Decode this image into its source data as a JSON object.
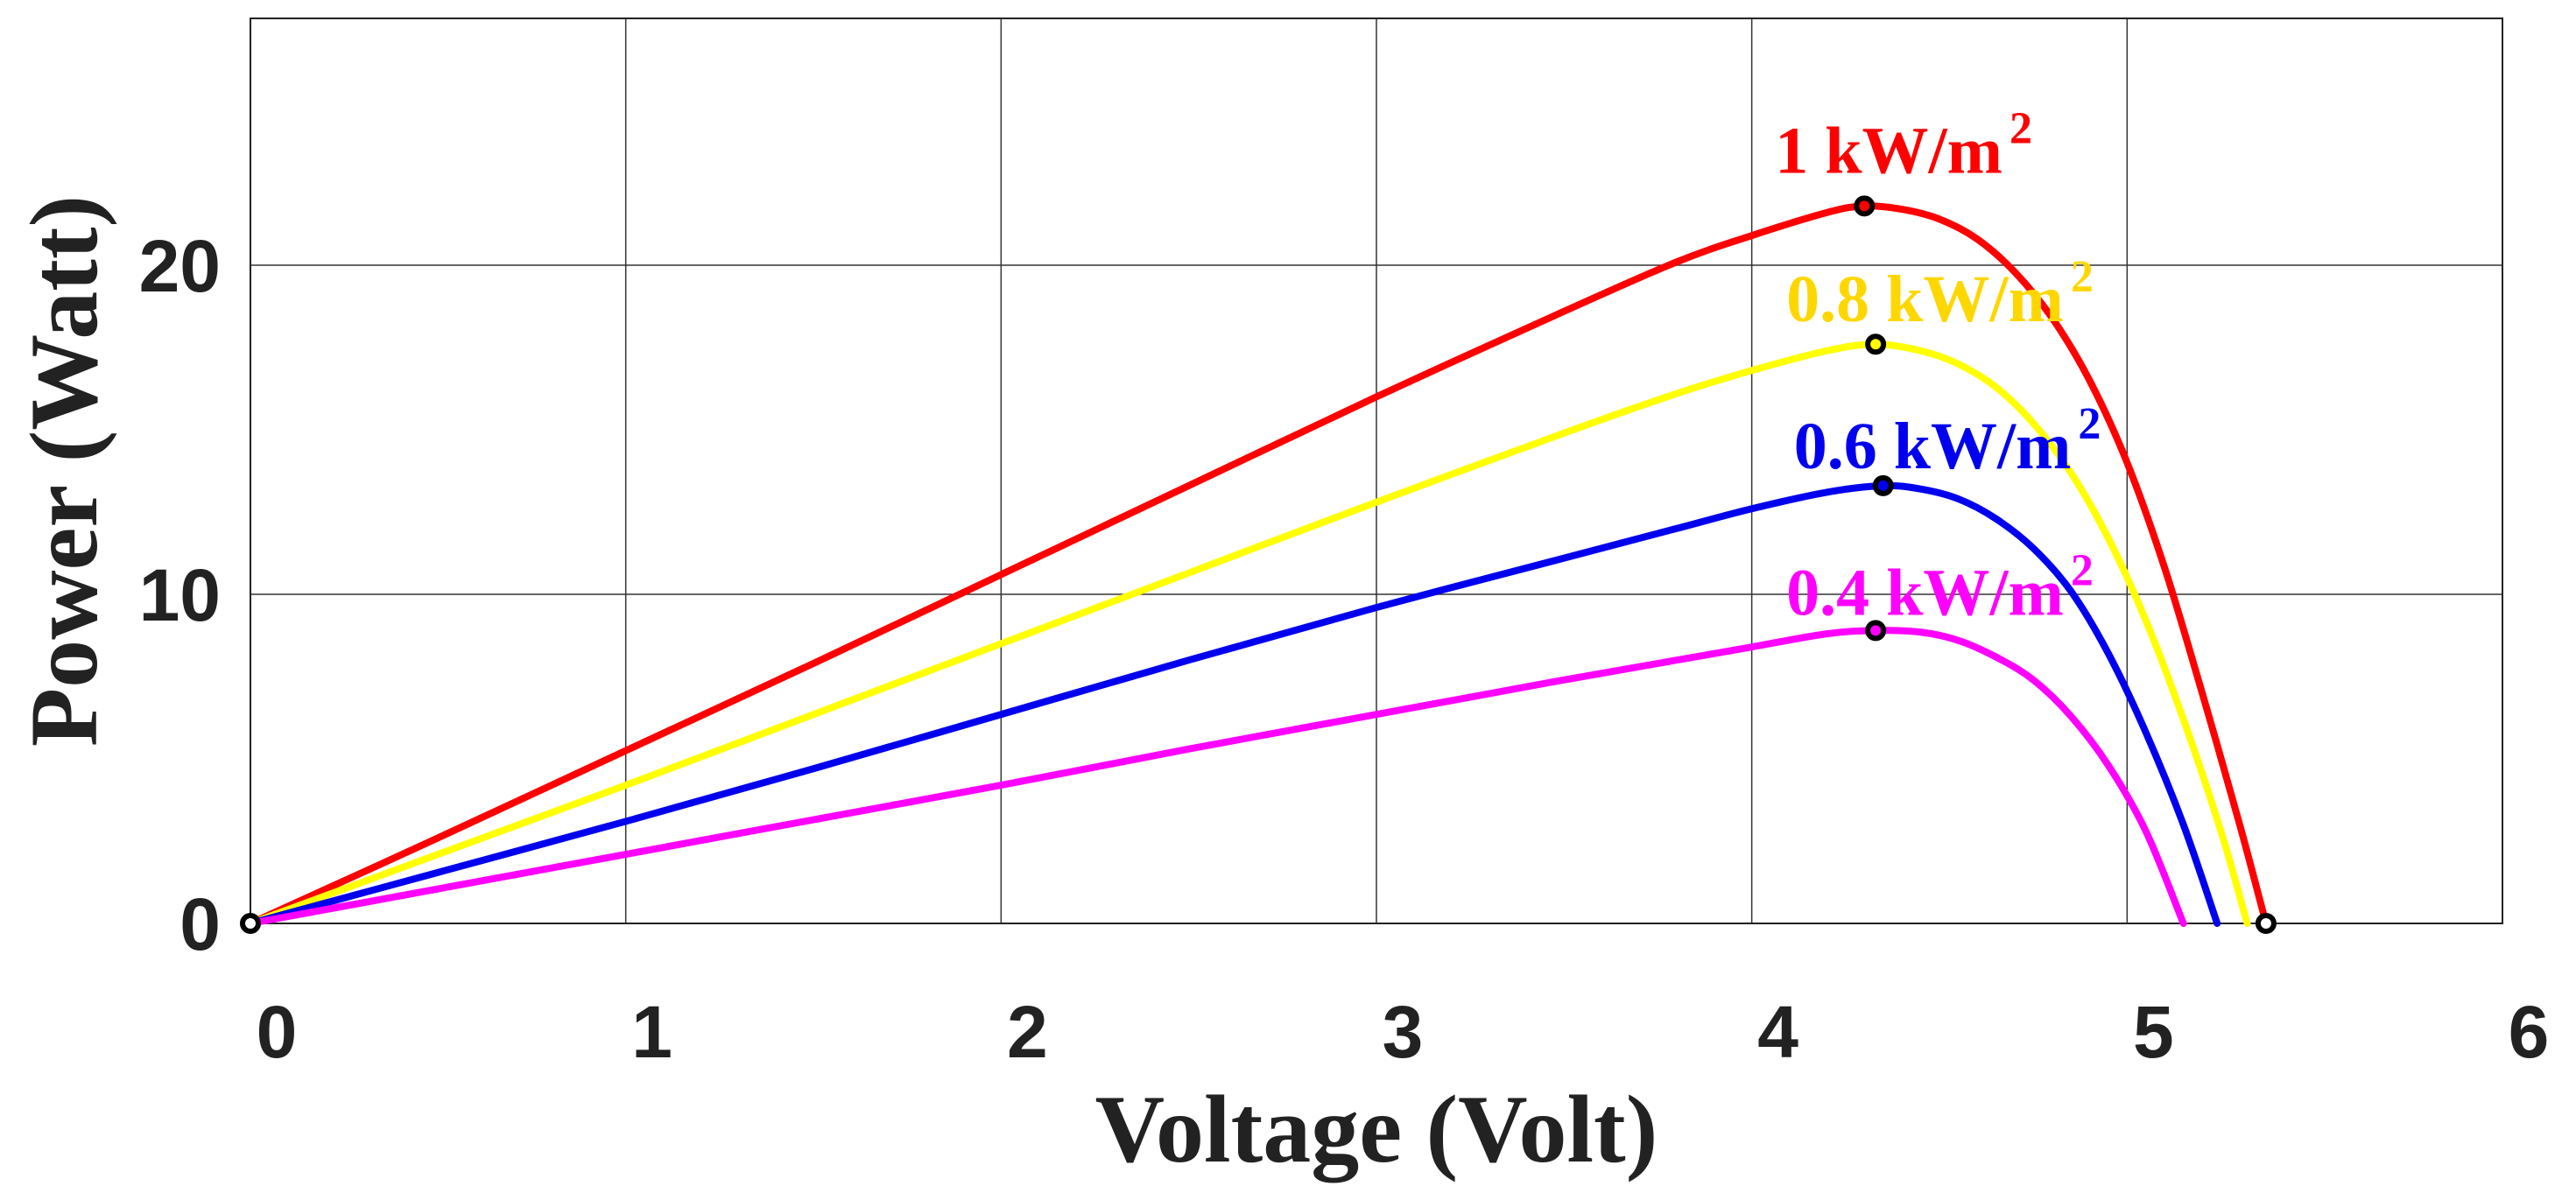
{
  "chart_data": {
    "type": "line",
    "title": "",
    "xlabel": "Voltage (Volt)",
    "ylabel": "Power (Watt)",
    "xlim": [
      0,
      6
    ],
    "ylim": [
      0,
      27.5
    ],
    "grid": true,
    "x_ticks": [
      0,
      1,
      2,
      3,
      4,
      5,
      6
    ],
    "x_tick_labels": [
      "0",
      "1",
      "2",
      "3",
      "4",
      "5",
      "6"
    ],
    "y_ticks": [
      0,
      10,
      20
    ],
    "y_tick_labels": [
      "0",
      "10",
      "20"
    ],
    "series": [
      {
        "name": "1 kW/m²",
        "label_main": "1 kW/m",
        "label_sup": "2",
        "color": "#ff0000",
        "voc": 5.37,
        "mpp": {
          "v": 4.3,
          "p": 21.8
        },
        "points": [
          [
            0,
            0
          ],
          [
            0.5,
            2.6
          ],
          [
            1,
            5.25
          ],
          [
            1.5,
            7.9
          ],
          [
            2,
            10.6
          ],
          [
            2.5,
            13.3
          ],
          [
            3,
            16.0
          ],
          [
            3.5,
            18.6
          ],
          [
            3.8,
            20.1
          ],
          [
            4.0,
            20.9
          ],
          [
            4.2,
            21.6
          ],
          [
            4.3,
            21.8
          ],
          [
            4.4,
            21.7
          ],
          [
            4.5,
            21.4
          ],
          [
            4.6,
            20.8
          ],
          [
            4.7,
            19.8
          ],
          [
            4.8,
            18.4
          ],
          [
            4.9,
            16.5
          ],
          [
            5.0,
            14.0
          ],
          [
            5.1,
            10.8
          ],
          [
            5.2,
            7.0
          ],
          [
            5.3,
            3.0
          ],
          [
            5.37,
            0
          ]
        ]
      },
      {
        "name": "0.8 kW/m²",
        "label_main": "0.8 kW/m",
        "label_sup": "2",
        "color": "#ffff00",
        "label_color": "#ffd700",
        "voc": 5.32,
        "mpp": {
          "v": 4.33,
          "p": 17.6
        },
        "points": [
          [
            0,
            0
          ],
          [
            0.5,
            2.1
          ],
          [
            1,
            4.2
          ],
          [
            1.5,
            6.35
          ],
          [
            2,
            8.5
          ],
          [
            2.5,
            10.65
          ],
          [
            3,
            12.8
          ],
          [
            3.5,
            14.9
          ],
          [
            3.8,
            16.1
          ],
          [
            4.0,
            16.8
          ],
          [
            4.2,
            17.4
          ],
          [
            4.33,
            17.6
          ],
          [
            4.45,
            17.4
          ],
          [
            4.55,
            17.0
          ],
          [
            4.65,
            16.3
          ],
          [
            4.75,
            15.2
          ],
          [
            4.85,
            13.7
          ],
          [
            4.95,
            11.7
          ],
          [
            5.05,
            9.2
          ],
          [
            5.15,
            6.2
          ],
          [
            5.25,
            2.8
          ],
          [
            5.32,
            0
          ]
        ]
      },
      {
        "name": "0.6 kW/m²",
        "label_main": "0.6 kW/m",
        "label_sup": "2",
        "color": "#0000ee",
        "voc": 5.24,
        "mpp": {
          "v": 4.35,
          "p": 13.3
        },
        "points": [
          [
            0,
            0
          ],
          [
            0.5,
            1.55
          ],
          [
            1,
            3.1
          ],
          [
            1.5,
            4.7
          ],
          [
            2,
            6.35
          ],
          [
            2.5,
            8.0
          ],
          [
            3,
            9.6
          ],
          [
            3.5,
            11.1
          ],
          [
            3.8,
            12.0
          ],
          [
            4.0,
            12.6
          ],
          [
            4.2,
            13.1
          ],
          [
            4.35,
            13.3
          ],
          [
            4.45,
            13.2
          ],
          [
            4.55,
            12.9
          ],
          [
            4.65,
            12.3
          ],
          [
            4.75,
            11.4
          ],
          [
            4.85,
            10.1
          ],
          [
            4.95,
            8.2
          ],
          [
            5.05,
            5.8
          ],
          [
            5.15,
            3.0
          ],
          [
            5.24,
            0
          ]
        ]
      },
      {
        "name": "0.4 kW/m²",
        "label_main": "0.4 kW/m",
        "label_sup": "2",
        "color": "#ff00ff",
        "voc": 5.15,
        "mpp": {
          "v": 4.33,
          "p": 8.9
        },
        "points": [
          [
            0,
            0
          ],
          [
            0.5,
            1.05
          ],
          [
            1,
            2.1
          ],
          [
            1.5,
            3.15
          ],
          [
            2,
            4.2
          ],
          [
            2.5,
            5.3
          ],
          [
            3,
            6.35
          ],
          [
            3.5,
            7.4
          ],
          [
            3.8,
            8.0
          ],
          [
            4.0,
            8.4
          ],
          [
            4.2,
            8.8
          ],
          [
            4.33,
            8.9
          ],
          [
            4.45,
            8.85
          ],
          [
            4.55,
            8.6
          ],
          [
            4.65,
            8.1
          ],
          [
            4.75,
            7.4
          ],
          [
            4.85,
            6.3
          ],
          [
            4.95,
            4.8
          ],
          [
            5.05,
            2.8
          ],
          [
            5.15,
            0
          ]
        ]
      }
    ]
  }
}
